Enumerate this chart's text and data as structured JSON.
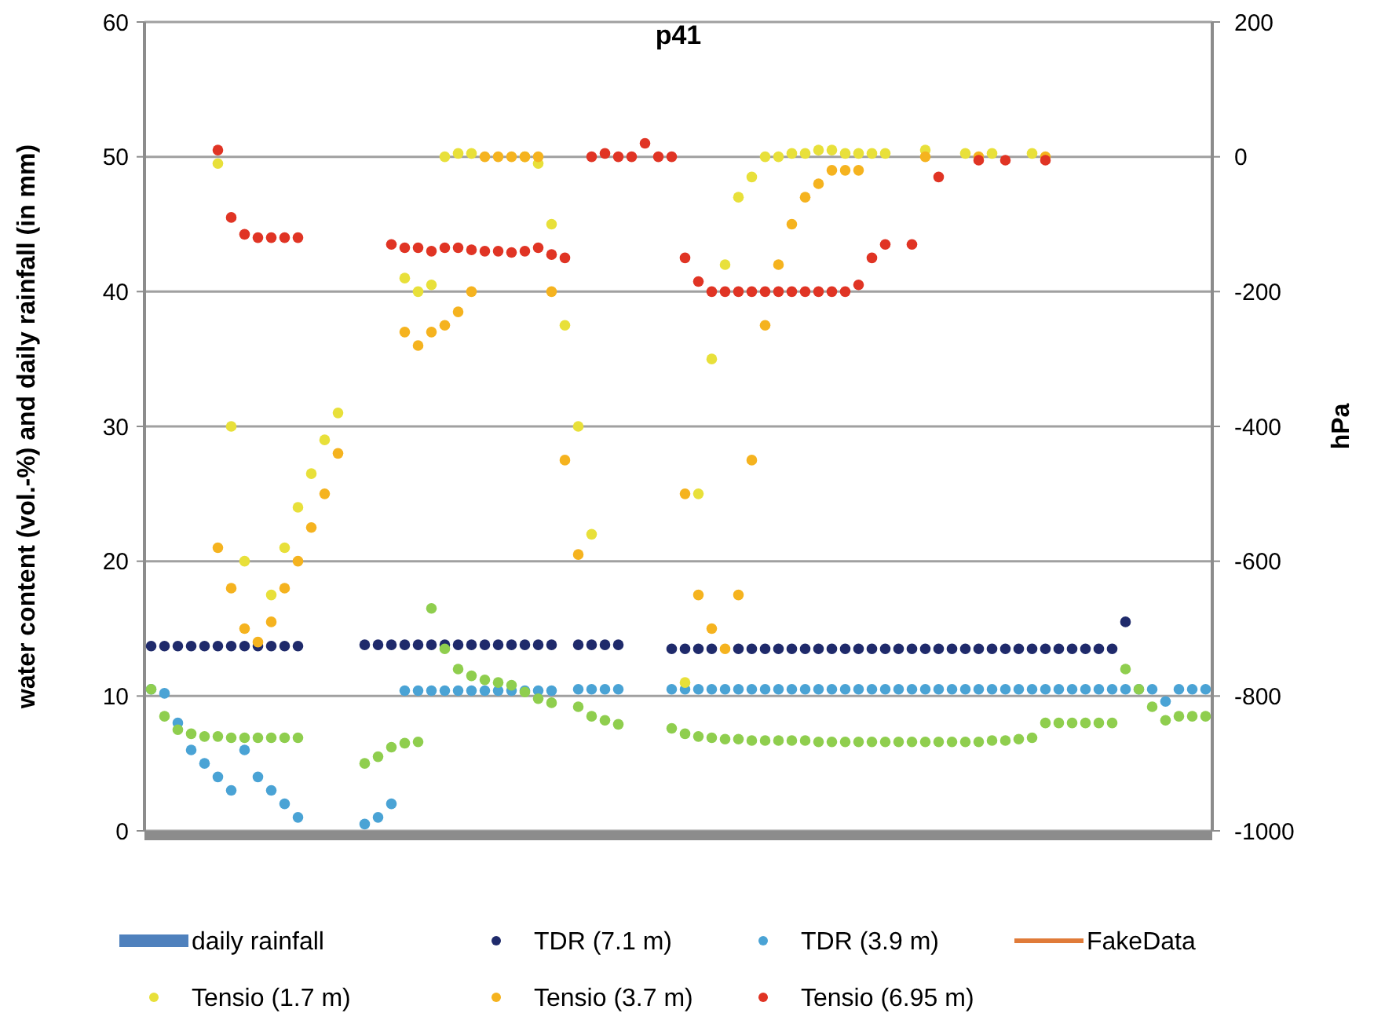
{
  "chart_data": {
    "type": "scatter",
    "title": "p41",
    "ylabel": "water content (vol.-%) and daily rainfall (in mm)",
    "y2label": "hPa",
    "categories": [
      null,
      null,
      null,
      null,
      null,
      null,
      null,
      null,
      null,
      null,
      null,
      null,
      null,
      null,
      null,
      null,
      null,
      null,
      null,
      null,
      null,
      null,
      null,
      null,
      null,
      null,
      null,
      null,
      null,
      null,
      null,
      null,
      null,
      null,
      null,
      null,
      null,
      null,
      null,
      null,
      null,
      null,
      null,
      null,
      null,
      null,
      null,
      null,
      null,
      null,
      null,
      null,
      null,
      null,
      null,
      null,
      null,
      null,
      null,
      null,
      null,
      null,
      null,
      null,
      null,
      null,
      null,
      null,
      null,
      null,
      null,
      null,
      null,
      null,
      null,
      null,
      null,
      null,
      null,
      null
    ],
    "ylim": [
      0,
      60
    ],
    "yticks": [
      0,
      10,
      20,
      30,
      40,
      50,
      60
    ],
    "y2lim": [
      -1000,
      200
    ],
    "y2ticks": [
      -1000,
      -800,
      -600,
      -400,
      -200,
      0,
      200
    ],
    "grid": "y",
    "legend": "bottom",
    "marker": "circle",
    "series": [
      {
        "name": "daily rainfall",
        "type": "bar",
        "color": "#4f81bd",
        "values": [
          null,
          null,
          null,
          null,
          null,
          null,
          null,
          null,
          null,
          null,
          null,
          null,
          null,
          null,
          null,
          null,
          null,
          null,
          null,
          null,
          null,
          null,
          null,
          null,
          null,
          null,
          null,
          null,
          null,
          null,
          null,
          null,
          null,
          null,
          null,
          null,
          null,
          null,
          null,
          null,
          null,
          null,
          null,
          null,
          null,
          null,
          null,
          null,
          null,
          null,
          null,
          null,
          null,
          null,
          null,
          null,
          null,
          null,
          null,
          null,
          null,
          null,
          null,
          null,
          null,
          null,
          null,
          null,
          null,
          null,
          null,
          null,
          null,
          null,
          null,
          null,
          null,
          null,
          null,
          null
        ]
      },
      {
        "name": "TDR (7.1 m)",
        "color": "#1f2a6b",
        "values": [
          13.7,
          13.7,
          13.7,
          13.7,
          13.7,
          13.7,
          13.7,
          13.7,
          13.7,
          13.7,
          13.7,
          13.7,
          null,
          null,
          null,
          null,
          13.8,
          13.8,
          13.8,
          13.8,
          13.8,
          13.8,
          13.8,
          13.8,
          13.8,
          13.8,
          13.8,
          13.8,
          13.8,
          13.8,
          13.8,
          null,
          13.8,
          13.8,
          13.8,
          13.8,
          null,
          null,
          null,
          13.5,
          13.5,
          13.5,
          13.5,
          null,
          13.5,
          13.5,
          13.5,
          13.5,
          13.5,
          13.5,
          13.5,
          13.5,
          13.5,
          13.5,
          13.5,
          13.5,
          13.5,
          13.5,
          13.5,
          13.5,
          13.5,
          13.5,
          13.5,
          13.5,
          13.5,
          13.5,
          13.5,
          13.5,
          13.5,
          13.5,
          13.5,
          13.5,
          13.5,
          15.5,
          null,
          null,
          null,
          null,
          null,
          null
        ]
      },
      {
        "name": "TDR (3.9 m)",
        "color": "#4aa3d5",
        "values": [
          10.5,
          10.2,
          8,
          6,
          5,
          4,
          3,
          6,
          4,
          3,
          2,
          1,
          null,
          null,
          null,
          null,
          0.5,
          1,
          2,
          10.4,
          10.4,
          10.4,
          10.4,
          10.4,
          10.4,
          10.4,
          10.4,
          10.4,
          10.4,
          10.4,
          10.4,
          null,
          10.5,
          10.5,
          10.5,
          10.5,
          null,
          null,
          null,
          10.5,
          10.5,
          10.5,
          10.5,
          10.5,
          10.5,
          10.5,
          10.5,
          10.5,
          10.5,
          10.5,
          10.5,
          10.5,
          10.5,
          10.5,
          10.5,
          10.5,
          10.5,
          10.5,
          10.5,
          10.5,
          10.5,
          10.5,
          10.5,
          10.5,
          10.5,
          10.5,
          10.5,
          10.5,
          10.5,
          10.5,
          10.5,
          10.5,
          10.5,
          10.5,
          10.5,
          10.5,
          9.6,
          10.5,
          10.5,
          10.5
        ]
      },
      {
        "name": "FakeData",
        "type": "line",
        "color": "#e07b39",
        "values": [
          null,
          null,
          null,
          null,
          null,
          null,
          null,
          null,
          null,
          null,
          null,
          null,
          null,
          null,
          null,
          null,
          null,
          null,
          null,
          null,
          null,
          null,
          null,
          null,
          null,
          null,
          null,
          null,
          null,
          null,
          null,
          null,
          null,
          null,
          null,
          null,
          null,
          null,
          null,
          null,
          null,
          null,
          null,
          null,
          null,
          null,
          null,
          null,
          null,
          null,
          null,
          null,
          null,
          null,
          null,
          null,
          null,
          null,
          null,
          null,
          null,
          null,
          null,
          null,
          null,
          null,
          null,
          null,
          null,
          null,
          null,
          null,
          null,
          null,
          null,
          null,
          null,
          null,
          null,
          null
        ]
      },
      {
        "name": "Tensio (1.7 m)",
        "axis": "y2",
        "color": "#e8e03a",
        "values": [
          null,
          null,
          null,
          null,
          null,
          -10,
          -400,
          -600,
          null,
          -650,
          -580,
          -520,
          -470,
          -420,
          -380,
          null,
          null,
          null,
          null,
          -180,
          -200,
          -190,
          0,
          5,
          5,
          null,
          null,
          null,
          0,
          -10,
          -100,
          -250,
          -400,
          -560,
          null,
          null,
          null,
          null,
          null,
          null,
          -780,
          -500,
          -300,
          -160,
          -60,
          -30,
          0,
          0,
          5,
          5,
          10,
          10,
          5,
          5,
          5,
          5,
          null,
          null,
          10,
          null,
          null,
          5,
          null,
          5,
          null,
          null,
          5,
          null,
          null,
          null,
          null,
          null,
          null,
          null,
          null,
          null,
          null,
          null,
          null,
          null
        ]
      },
      {
        "name": "Tensio (3.7 m)",
        "axis": "y2",
        "color": "#f5b31f",
        "values": [
          null,
          null,
          null,
          null,
          null,
          -580,
          -640,
          -700,
          -720,
          -690,
          -640,
          -600,
          -550,
          -500,
          -440,
          null,
          null,
          null,
          null,
          -260,
          -280,
          -260,
          -250,
          -230,
          -200,
          0,
          0,
          0,
          0,
          0,
          -200,
          -450,
          -590,
          null,
          null,
          null,
          null,
          null,
          null,
          null,
          -500,
          -650,
          -700,
          -730,
          -650,
          -450,
          -250,
          -160,
          -100,
          -60,
          -40,
          -20,
          -20,
          -20,
          null,
          null,
          null,
          null,
          0,
          null,
          null,
          null,
          0,
          null,
          null,
          null,
          null,
          0,
          null,
          null,
          null,
          null,
          null,
          null,
          null,
          null,
          null,
          null,
          null,
          null
        ]
      },
      {
        "name": "Tensio (6.95 m)",
        "axis": "y2",
        "color": "#e03424",
        "values": [
          null,
          null,
          null,
          null,
          null,
          10,
          -90,
          -115,
          -120,
          -120,
          -120,
          -120,
          null,
          null,
          null,
          null,
          null,
          null,
          -130,
          -135,
          -135,
          -140,
          -135,
          -135,
          -138,
          -140,
          -140,
          -142,
          -140,
          -135,
          -145,
          -150,
          null,
          0,
          5,
          0,
          0,
          20,
          0,
          0,
          -150,
          -185,
          -200,
          -200,
          -200,
          -200,
          -200,
          -200,
          -200,
          -200,
          -200,
          -200,
          -200,
          -190,
          -150,
          -130,
          null,
          -130,
          null,
          -30,
          null,
          null,
          -5,
          null,
          -5,
          null,
          null,
          -5,
          null,
          null,
          null,
          null,
          null,
          null,
          null,
          null,
          null,
          null,
          null,
          null
        ]
      },
      {
        "color": "#8fce4e",
        "values": [
          10.5,
          8.5,
          7.5,
          7.2,
          7,
          7,
          6.9,
          6.9,
          6.9,
          6.9,
          6.9,
          6.9,
          null,
          null,
          null,
          null,
          5,
          5.5,
          6.2,
          6.5,
          6.6,
          16.5,
          13.5,
          12,
          11.5,
          11.2,
          11,
          10.8,
          10.3,
          9.8,
          9.5,
          null,
          9.2,
          8.5,
          8.2,
          7.9,
          null,
          null,
          null,
          7.6,
          7.2,
          7,
          6.9,
          6.8,
          6.8,
          6.7,
          6.7,
          6.7,
          6.7,
          6.7,
          6.6,
          6.6,
          6.6,
          6.6,
          6.6,
          6.6,
          6.6,
          6.6,
          6.6,
          6.6,
          6.6,
          6.6,
          6.6,
          6.7,
          6.7,
          6.8,
          6.9,
          8,
          8,
          8,
          8,
          8,
          8,
          12,
          10.5,
          9.2,
          8.2,
          8.5,
          8.5,
          8.5
        ]
      }
    ]
  }
}
